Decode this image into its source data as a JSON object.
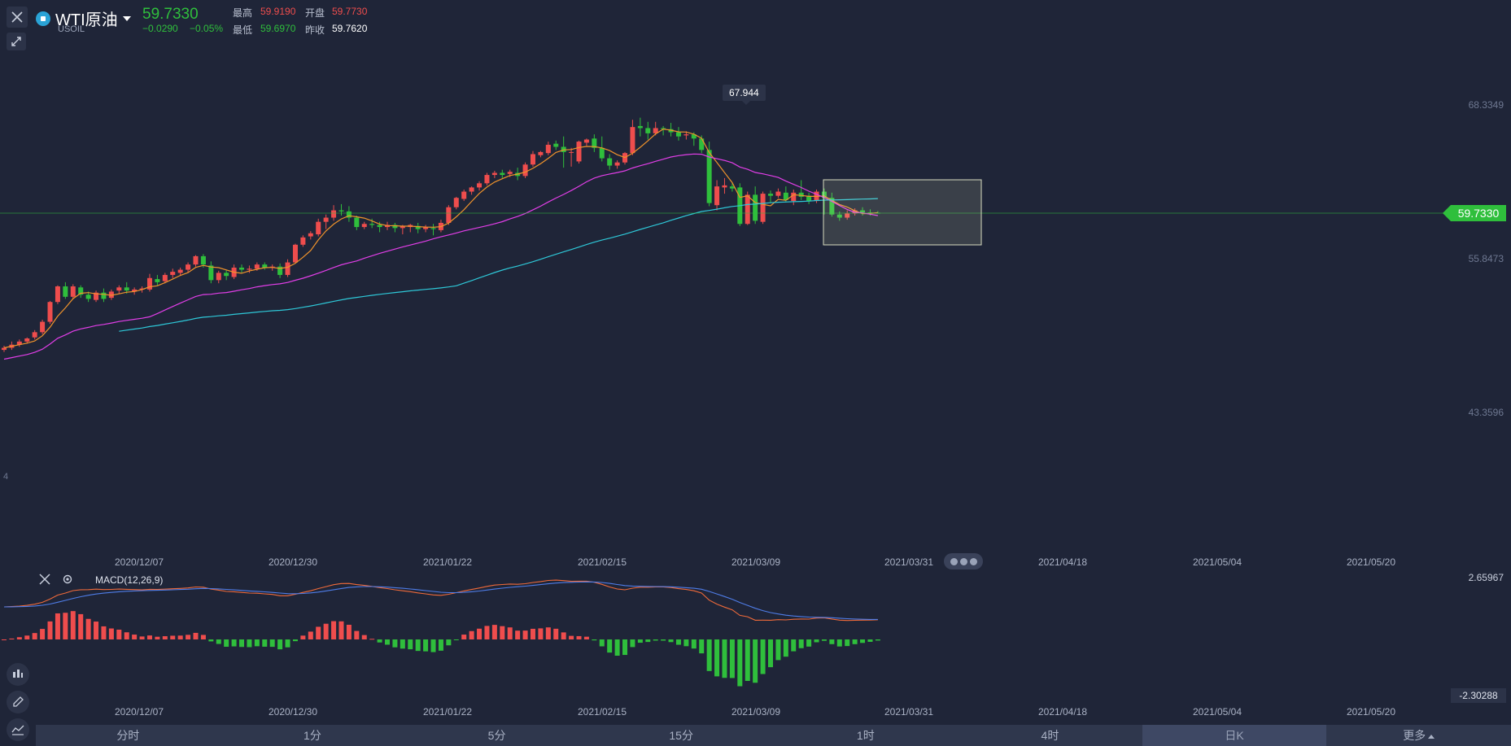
{
  "header": {
    "symbol_name": "WTI原油",
    "symbol_code": "USOIL",
    "last_price": "59.7330",
    "change": "−0.0290",
    "change_pct": "−0.05%",
    "high_label": "最高",
    "high_value": "59.9190",
    "open_label": "开盘",
    "open_value": "59.7730",
    "low_label": "最低",
    "low_value": "59.6970",
    "prev_close_label": "昨收",
    "prev_close_value": "59.7620"
  },
  "price_axis": {
    "labels": [
      "68.3349",
      "55.8473",
      "43.3596"
    ],
    "current_price_tag": "59.7330",
    "left_edge_label": "4"
  },
  "max_marker": "67.944",
  "date_axis": [
    "2020/12/07",
    "2020/12/30",
    "2021/01/22",
    "2021/02/15",
    "2021/03/09",
    "2021/03/31",
    "2021/04/18",
    "2021/05/04",
    "2021/05/20"
  ],
  "macd": {
    "title": "MACD(12,26,9)",
    "max_label": "2.65967",
    "min_label": "-2.30288"
  },
  "timeframes": [
    "分时",
    "1分",
    "5分",
    "15分",
    "1时",
    "4时",
    "日K",
    "更多"
  ],
  "active_timeframe": "日K",
  "colors": {
    "background": "#1f2538",
    "up": "#ef4d4d",
    "down": "#2fbf3c",
    "ma_short": "#f0932b",
    "ma_mid": "#e23ee8",
    "ma_long": "#2ec8d8"
  },
  "icons": {
    "close": "close-icon",
    "draw": "draw-tool-icon",
    "settings": "gear-icon",
    "side": [
      "candles-icon",
      "pencil-icon",
      "indicator-icon"
    ]
  },
  "chart_data": {
    "type": "candlestick",
    "note_series": [
      "MA-short",
      "MA-mid",
      "MA-long"
    ],
    "x_range": [
      "2020/11/20",
      "2021/04/12"
    ],
    "y_range": [
      40.0,
      70.0
    ],
    "highlighted_range": [
      "2021/03/18",
      "2021/04/12"
    ],
    "candles": [
      {
        "o": 46.6,
        "h": 47.0,
        "c": 46.8,
        "l": 46.4
      },
      {
        "o": 46.8,
        "h": 47.4,
        "c": 47.1,
        "l": 46.6
      },
      {
        "o": 47.1,
        "h": 47.6,
        "c": 47.4,
        "l": 46.9
      },
      {
        "o": 47.4,
        "h": 47.8,
        "c": 47.7,
        "l": 47.2
      },
      {
        "o": 47.8,
        "h": 48.5,
        "c": 48.3,
        "l": 47.6
      },
      {
        "o": 48.3,
        "h": 49.5,
        "c": 49.3,
        "l": 48.1
      },
      {
        "o": 49.3,
        "h": 51.3,
        "c": 51.2,
        "l": 49.1
      },
      {
        "o": 51.2,
        "h": 52.8,
        "c": 52.7,
        "l": 51.0
      },
      {
        "o": 52.7,
        "h": 53.1,
        "c": 51.7,
        "l": 51.5
      },
      {
        "o": 51.7,
        "h": 52.9,
        "c": 52.7,
        "l": 51.5
      },
      {
        "o": 52.6,
        "h": 52.8,
        "c": 51.9,
        "l": 51.6
      },
      {
        "o": 51.9,
        "h": 52.2,
        "c": 51.5,
        "l": 51.2
      },
      {
        "o": 51.4,
        "h": 52.3,
        "c": 52.1,
        "l": 51.2
      },
      {
        "o": 52.1,
        "h": 52.5,
        "c": 51.5,
        "l": 51.2
      },
      {
        "o": 51.6,
        "h": 52.4,
        "c": 52.2,
        "l": 51.4
      },
      {
        "o": 52.3,
        "h": 52.8,
        "c": 52.6,
        "l": 52.0
      },
      {
        "o": 52.6,
        "h": 53.1,
        "c": 52.3,
        "l": 52.0
      },
      {
        "o": 52.2,
        "h": 52.6,
        "c": 52.4,
        "l": 51.9
      },
      {
        "o": 52.4,
        "h": 52.7,
        "c": 52.5,
        "l": 52.1
      },
      {
        "o": 52.4,
        "h": 53.9,
        "c": 53.5,
        "l": 52.2
      },
      {
        "o": 53.4,
        "h": 53.8,
        "c": 53.1,
        "l": 52.8
      },
      {
        "o": 53.2,
        "h": 54.0,
        "c": 53.8,
        "l": 53.0
      },
      {
        "o": 53.8,
        "h": 54.4,
        "c": 54.1,
        "l": 53.5
      },
      {
        "o": 54.0,
        "h": 54.5,
        "c": 54.3,
        "l": 53.7
      },
      {
        "o": 54.3,
        "h": 55.0,
        "c": 54.8,
        "l": 54.0
      },
      {
        "o": 54.8,
        "h": 55.7,
        "c": 55.6,
        "l": 54.6
      },
      {
        "o": 55.6,
        "h": 55.8,
        "c": 54.8,
        "l": 54.5
      },
      {
        "o": 54.7,
        "h": 55.1,
        "c": 53.3,
        "l": 53.0
      },
      {
        "o": 53.3,
        "h": 54.2,
        "c": 54.0,
        "l": 53.0
      },
      {
        "o": 54.0,
        "h": 54.3,
        "c": 53.7,
        "l": 53.3
      },
      {
        "o": 53.6,
        "h": 54.8,
        "c": 54.5,
        "l": 53.4
      },
      {
        "o": 54.5,
        "h": 54.8,
        "c": 54.3,
        "l": 54.0
      },
      {
        "o": 54.3,
        "h": 54.7,
        "c": 54.4,
        "l": 54.0
      },
      {
        "o": 54.4,
        "h": 55.0,
        "c": 54.8,
        "l": 54.2
      },
      {
        "o": 54.8,
        "h": 55.0,
        "c": 54.5,
        "l": 54.3
      },
      {
        "o": 54.5,
        "h": 54.8,
        "c": 54.6,
        "l": 54.2
      },
      {
        "o": 54.6,
        "h": 54.9,
        "c": 53.8,
        "l": 53.5
      },
      {
        "o": 53.8,
        "h": 55.3,
        "c": 55.0,
        "l": 53.6
      },
      {
        "o": 55.0,
        "h": 56.8,
        "c": 56.7,
        "l": 54.9
      },
      {
        "o": 56.7,
        "h": 57.6,
        "c": 57.4,
        "l": 56.5
      },
      {
        "o": 57.5,
        "h": 58.0,
        "c": 57.8,
        "l": 57.2
      },
      {
        "o": 57.7,
        "h": 59.2,
        "c": 58.9,
        "l": 57.5
      },
      {
        "o": 58.9,
        "h": 59.6,
        "c": 59.3,
        "l": 58.2
      },
      {
        "o": 59.3,
        "h": 60.5,
        "c": 60.0,
        "l": 59.0
      },
      {
        "o": 60.0,
        "h": 60.6,
        "c": 59.9,
        "l": 59.5
      },
      {
        "o": 59.9,
        "h": 60.4,
        "c": 59.3,
        "l": 58.9
      },
      {
        "o": 59.3,
        "h": 59.5,
        "c": 58.4,
        "l": 58.1
      },
      {
        "o": 58.4,
        "h": 58.9,
        "c": 58.7,
        "l": 58.2
      },
      {
        "o": 58.7,
        "h": 59.2,
        "c": 58.6,
        "l": 58.3
      },
      {
        "o": 58.6,
        "h": 58.9,
        "c": 58.4,
        "l": 57.9
      },
      {
        "o": 58.4,
        "h": 58.9,
        "c": 58.6,
        "l": 58.1
      },
      {
        "o": 58.6,
        "h": 58.8,
        "c": 58.3,
        "l": 57.9
      },
      {
        "o": 58.3,
        "h": 58.6,
        "c": 58.5,
        "l": 57.7
      },
      {
        "o": 58.4,
        "h": 58.7,
        "c": 58.6,
        "l": 57.9
      },
      {
        "o": 58.5,
        "h": 58.8,
        "c": 58.2,
        "l": 57.8
      },
      {
        "o": 58.2,
        "h": 58.6,
        "c": 58.4,
        "l": 57.9
      },
      {
        "o": 58.3,
        "h": 58.7,
        "c": 58.2,
        "l": 57.6
      },
      {
        "o": 58.1,
        "h": 59.1,
        "c": 58.8,
        "l": 57.9
      },
      {
        "o": 58.8,
        "h": 60.5,
        "c": 60.3,
        "l": 58.6
      },
      {
        "o": 60.3,
        "h": 61.3,
        "c": 61.2,
        "l": 60.1
      },
      {
        "o": 61.1,
        "h": 62.0,
        "c": 61.8,
        "l": 60.9
      },
      {
        "o": 61.8,
        "h": 62.3,
        "c": 62.2,
        "l": 61.5
      },
      {
        "o": 62.2,
        "h": 62.8,
        "c": 62.6,
        "l": 61.9
      },
      {
        "o": 62.6,
        "h": 63.6,
        "c": 63.4,
        "l": 62.4
      },
      {
        "o": 63.4,
        "h": 63.8,
        "c": 63.6,
        "l": 63.1
      },
      {
        "o": 63.6,
        "h": 63.9,
        "c": 63.4,
        "l": 63.1
      },
      {
        "o": 63.5,
        "h": 63.9,
        "c": 63.7,
        "l": 63.2
      },
      {
        "o": 63.6,
        "h": 64.1,
        "c": 63.3,
        "l": 62.9
      },
      {
        "o": 63.3,
        "h": 64.6,
        "c": 64.4,
        "l": 63.1
      },
      {
        "o": 64.4,
        "h": 65.7,
        "c": 65.4,
        "l": 64.2
      },
      {
        "o": 65.3,
        "h": 65.7,
        "c": 65.6,
        "l": 65.1
      },
      {
        "o": 65.5,
        "h": 66.6,
        "c": 66.3,
        "l": 65.3
      },
      {
        "o": 66.4,
        "h": 66.7,
        "c": 66.1,
        "l": 65.8
      },
      {
        "o": 66.1,
        "h": 67.1,
        "c": 65.6,
        "l": 64.1
      },
      {
        "o": 65.6,
        "h": 66.0,
        "c": 65.6,
        "l": 64.2
      },
      {
        "o": 64.7,
        "h": 66.7,
        "c": 66.6,
        "l": 64.5
      },
      {
        "o": 66.5,
        "h": 66.9,
        "c": 66.8,
        "l": 66.2
      },
      {
        "o": 66.9,
        "h": 67.3,
        "c": 66.0,
        "l": 65.6
      },
      {
        "o": 66.0,
        "h": 67.1,
        "c": 65.0,
        "l": 64.7
      },
      {
        "o": 65.0,
        "h": 65.4,
        "c": 64.3,
        "l": 63.9
      },
      {
        "o": 64.3,
        "h": 64.8,
        "c": 64.6,
        "l": 64.0
      },
      {
        "o": 64.6,
        "h": 65.6,
        "c": 65.5,
        "l": 64.4
      },
      {
        "o": 65.5,
        "h": 68.7,
        "c": 68.0,
        "l": 65.3
      },
      {
        "o": 68.1,
        "h": 68.9,
        "c": 67.9,
        "l": 67.1
      },
      {
        "o": 67.9,
        "h": 68.5,
        "c": 67.4,
        "l": 66.8
      },
      {
        "o": 67.4,
        "h": 68.5,
        "c": 67.9,
        "l": 67.2
      },
      {
        "o": 67.9,
        "h": 68.1,
        "c": 67.8,
        "l": 67.2
      },
      {
        "o": 67.8,
        "h": 68.4,
        "c": 67.5,
        "l": 67.1
      },
      {
        "o": 67.5,
        "h": 68.0,
        "c": 67.1,
        "l": 66.7
      },
      {
        "o": 67.2,
        "h": 67.6,
        "c": 67.3,
        "l": 66.8
      },
      {
        "o": 67.3,
        "h": 67.5,
        "c": 66.9,
        "l": 66.2
      },
      {
        "o": 66.9,
        "h": 67.2,
        "c": 65.8,
        "l": 65.5
      },
      {
        "o": 65.8,
        "h": 66.6,
        "c": 60.7,
        "l": 60.4
      },
      {
        "o": 60.5,
        "h": 62.9,
        "c": 62.3,
        "l": 60.0
      },
      {
        "o": 62.2,
        "h": 63.1,
        "c": 62.4,
        "l": 61.6
      },
      {
        "o": 62.3,
        "h": 62.6,
        "c": 62.1,
        "l": 61.8
      },
      {
        "o": 62.2,
        "h": 62.6,
        "c": 58.7,
        "l": 58.5
      },
      {
        "o": 58.7,
        "h": 61.8,
        "c": 61.5,
        "l": 58.6
      },
      {
        "o": 61.5,
        "h": 62.3,
        "c": 59.0,
        "l": 58.7
      },
      {
        "o": 58.9,
        "h": 61.8,
        "c": 61.6,
        "l": 58.7
      },
      {
        "o": 61.6,
        "h": 61.9,
        "c": 61.4,
        "l": 60.7
      },
      {
        "o": 61.4,
        "h": 62.1,
        "c": 61.8,
        "l": 61.2
      },
      {
        "o": 61.7,
        "h": 62.3,
        "c": 61.0,
        "l": 60.8
      },
      {
        "o": 60.9,
        "h": 62.0,
        "c": 61.7,
        "l": 60.5
      },
      {
        "o": 61.7,
        "h": 62.9,
        "c": 61.3,
        "l": 61.0
      },
      {
        "o": 61.4,
        "h": 61.7,
        "c": 60.9,
        "l": 60.6
      },
      {
        "o": 60.9,
        "h": 62.0,
        "c": 61.8,
        "l": 60.7
      },
      {
        "o": 61.8,
        "h": 62.1,
        "c": 61.2,
        "l": 59.6
      },
      {
        "o": 61.2,
        "h": 61.7,
        "c": 59.6,
        "l": 59.4
      },
      {
        "o": 59.6,
        "h": 59.9,
        "c": 59.3,
        "l": 59.0
      },
      {
        "o": 59.3,
        "h": 60.0,
        "c": 59.7,
        "l": 59.1
      },
      {
        "o": 59.7,
        "h": 60.2,
        "c": 60.0,
        "l": 59.5
      },
      {
        "o": 60.0,
        "h": 60.3,
        "c": 59.8,
        "l": 59.5
      },
      {
        "o": 59.8,
        "h": 60.1,
        "c": 59.7,
        "l": 59.5
      },
      {
        "o": 59.77,
        "h": 59.92,
        "c": 59.73,
        "l": 59.7
      }
    ],
    "macd_histogram_sign_changes": "positive Dec, negative Jan, positive Feb, negative late Mar–Apr"
  }
}
